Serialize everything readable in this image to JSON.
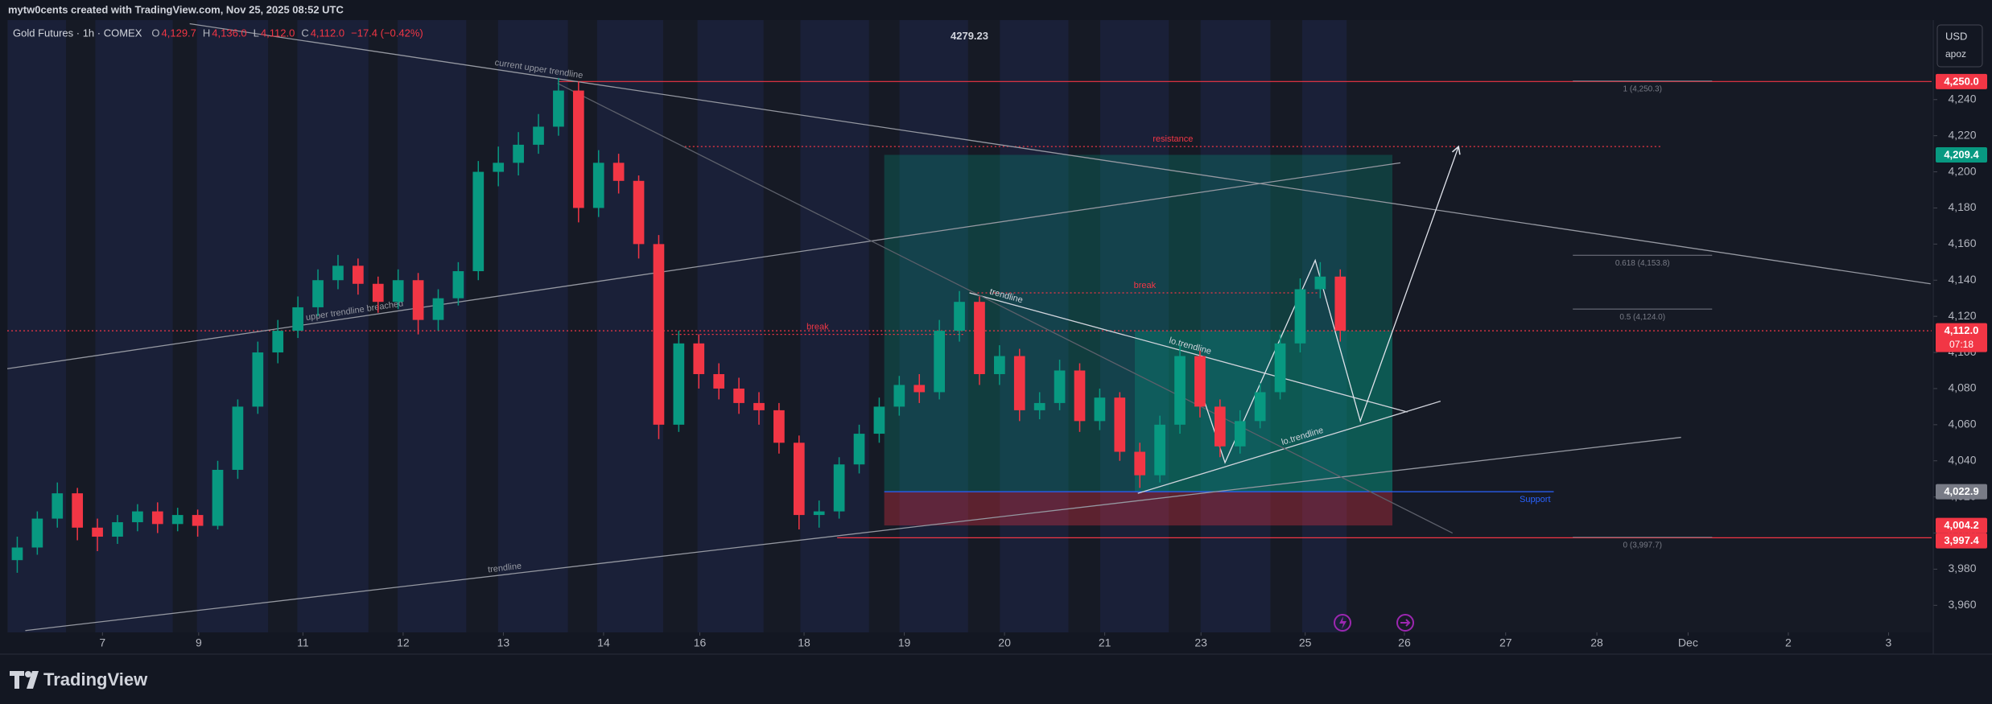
{
  "header": {
    "credit": "mytw0cents created with TradingView.com, Nov 25, 2025 08:52 UTC",
    "currency": "USD",
    "user": "apoz"
  },
  "footer": {
    "brand": "TradingView"
  },
  "chart_data": {
    "type": "candlestick",
    "title": "Gold Futures · 1h · COMEX",
    "ohlc_legend": [
      {
        "key": "O",
        "value": "4,129.7"
      },
      {
        "key": "H",
        "value": "4,136.0"
      },
      {
        "key": "L",
        "value": "4,112.0"
      },
      {
        "key": "C",
        "value": "4,112.0"
      }
    ],
    "change": "−17.4 (−0.42%)",
    "up_color": "#089981",
    "down_color": "#f23645",
    "grid": false,
    "xlim": [
      0,
      19.2
    ],
    "xticks": [
      {
        "value": 0.95,
        "label": "7"
      },
      {
        "value": 1.91,
        "label": "9"
      },
      {
        "value": 2.95,
        "label": "11"
      },
      {
        "value": 3.95,
        "label": "12"
      },
      {
        "value": 4.95,
        "label": "13"
      },
      {
        "value": 5.95,
        "label": "14"
      },
      {
        "value": 6.91,
        "label": "16"
      },
      {
        "value": 7.95,
        "label": "18"
      },
      {
        "value": 8.95,
        "label": "19"
      },
      {
        "value": 9.95,
        "label": "20"
      },
      {
        "value": 10.95,
        "label": "21"
      },
      {
        "value": 11.91,
        "label": "23"
      },
      {
        "value": 12.95,
        "label": "25"
      },
      {
        "value": 13.94,
        "label": "26"
      },
      {
        "value": 14.95,
        "label": "27"
      },
      {
        "value": 15.86,
        "label": "28"
      },
      {
        "value": 16.77,
        "label": "Dec"
      },
      {
        "value": 17.77,
        "label": "2"
      },
      {
        "value": 18.77,
        "label": "3"
      }
    ],
    "ylim": [
      3945,
      4284
    ],
    "yticks": [
      {
        "value": 3960,
        "label": "3,960"
      },
      {
        "value": 3980,
        "label": "3,980"
      },
      {
        "value": 4000,
        "label": "4,000"
      },
      {
        "value": 4020,
        "label": "4,020"
      },
      {
        "value": 4040,
        "label": "4,040"
      },
      {
        "value": 4060,
        "label": "4,060"
      },
      {
        "value": 4080,
        "label": "4,080"
      },
      {
        "value": 4100,
        "label": "4,100"
      },
      {
        "value": 4120,
        "label": "4,120"
      },
      {
        "value": 4140,
        "label": "4,140"
      },
      {
        "value": 4160,
        "label": "4,160"
      },
      {
        "value": 4180,
        "label": "4,180"
      },
      {
        "value": 4200,
        "label": "4,200"
      },
      {
        "value": 4220,
        "label": "4,220"
      },
      {
        "value": 4240,
        "label": "4,240"
      }
    ],
    "x": [
      0.1,
      0.3,
      0.5,
      0.7,
      0.9,
      1.1,
      1.3,
      1.5,
      1.7,
      1.9,
      2.1,
      2.3,
      2.5,
      2.7,
      2.9,
      3.1,
      3.3,
      3.5,
      3.7,
      3.9,
      4.1,
      4.3,
      4.5,
      4.7,
      4.9,
      5.1,
      5.3,
      5.5,
      5.7,
      5.9,
      6.1,
      6.3,
      6.5,
      6.7,
      6.9,
      7.1,
      7.3,
      7.5,
      7.7,
      7.9,
      8.1,
      8.3,
      8.5,
      8.7,
      8.9,
      9.1,
      9.3,
      9.5,
      9.7,
      9.9,
      10.1,
      10.3,
      10.5,
      10.7,
      10.9,
      11.1,
      11.3,
      11.5,
      11.7,
      11.9,
      12.1,
      12.3,
      12.5,
      12.7,
      12.9,
      13.1,
      13.3
    ],
    "open": [
      3985,
      3992,
      4008,
      4022,
      4003,
      3998,
      4006,
      4012,
      4005,
      4010,
      4004,
      4035,
      4070,
      4100,
      4112,
      4125,
      4140,
      4148,
      4138,
      4128,
      4140,
      4118,
      4130,
      4145,
      4200,
      4205,
      4215,
      4225,
      4245,
      4180,
      4205,
      4195,
      4160,
      4060,
      4105,
      4088,
      4080,
      4072,
      4068,
      4050,
      4010,
      4012,
      4038,
      4055,
      4070,
      4082,
      4078,
      4112,
      4128,
      4088,
      4098,
      4068,
      4072,
      4090,
      4062,
      4075,
      4045,
      4032,
      4060,
      4098,
      4070,
      4048,
      4062,
      4078,
      4105,
      4135,
      4142
    ],
    "high": [
      3998,
      4012,
      4028,
      4025,
      4008,
      4010,
      4016,
      4017,
      4014,
      4013,
      4040,
      4074,
      4106,
      4118,
      4131,
      4146,
      4154,
      4152,
      4142,
      4146,
      4144,
      4135,
      4150,
      4206,
      4214,
      4222,
      4232,
      4252,
      4250,
      4212,
      4210,
      4198,
      4165,
      4112,
      4110,
      4094,
      4086,
      4078,
      4072,
      4054,
      4018,
      4042,
      4060,
      4075,
      4087,
      4088,
      4118,
      4134,
      4131,
      4104,
      4102,
      4078,
      4096,
      4094,
      4080,
      4078,
      4050,
      4065,
      4104,
      4101,
      4074,
      4068,
      4083,
      4110,
      4141,
      4150,
      4146
    ],
    "low": [
      3978,
      3988,
      4003,
      3996,
      3990,
      3994,
      4001,
      4000,
      4001,
      3998,
      4002,
      4030,
      4066,
      4094,
      4108,
      4120,
      4135,
      4132,
      4122,
      4124,
      4110,
      4112,
      4126,
      4140,
      4192,
      4198,
      4210,
      4220,
      4172,
      4175,
      4188,
      4152,
      4052,
      4056,
      4080,
      4074,
      4066,
      4060,
      4044,
      4002,
      4003,
      4008,
      4033,
      4050,
      4065,
      4072,
      4074,
      4106,
      4082,
      4082,
      4062,
      4063,
      4068,
      4056,
      4057,
      4040,
      4025,
      4028,
      4055,
      4064,
      4042,
      4044,
      4058,
      4074,
      4100,
      4130,
      4106
    ],
    "close": [
      3992,
      4008,
      4022,
      4003,
      3998,
      4006,
      4012,
      4005,
      4010,
      4004,
      4035,
      4070,
      4100,
      4112,
      4125,
      4140,
      4148,
      4138,
      4128,
      4140,
      4118,
      4130,
      4145,
      4200,
      4205,
      4215,
      4225,
      4245,
      4180,
      4205,
      4195,
      4160,
      4060,
      4105,
      4088,
      4080,
      4072,
      4068,
      4050,
      4010,
      4012,
      4038,
      4055,
      4070,
      4082,
      4078,
      4112,
      4128,
      4088,
      4098,
      4068,
      4072,
      4090,
      4062,
      4075,
      4045,
      4032,
      4060,
      4098,
      4070,
      4048,
      4062,
      4078,
      4105,
      4135,
      4142,
      4112
    ],
    "drawings": [
      {
        "x": [
          1.82,
          19.19
        ],
        "y": [
          4282,
          4138
        ],
        "color": "#9598a1",
        "labels": [
          "current upper trendline"
        ]
      },
      {
        "x": [
          0,
          13.9
        ],
        "y": [
          4091,
          4205
        ],
        "color": "#9598a1",
        "labels": [
          "upper trendline breached"
        ]
      },
      {
        "x": [
          0.18,
          16.7
        ],
        "y": [
          3946,
          4053
        ],
        "color": "#9598a1",
        "labels": [
          "trendline"
        ]
      },
      {
        "x": [
          9.6,
          13.97
        ],
        "y": [
          4133,
          4067
        ],
        "color": "#d1d4dc",
        "labels": [
          "trendline",
          "lo.trendline"
        ]
      },
      {
        "x": [
          11.28,
          14.3
        ],
        "y": [
          4022,
          4073
        ],
        "color": "#d1d4dc",
        "labels": [
          "lo.trendline"
        ]
      },
      {
        "x": [
          5.49,
          14.42
        ],
        "y": [
          4249,
          4000
        ],
        "color": "#5d606b"
      },
      {
        "x": [
          11.95,
          12.15,
          13.05,
          13.5,
          14.48
        ],
        "y": [
          4072,
          4039,
          4151,
          4062,
          4214
        ],
        "color": "#e0e3eb"
      }
    ],
    "levels": [
      {
        "value": 4250,
        "x": [
          5.5,
          19.2
        ],
        "color": "#f23645",
        "style": "solid"
      },
      {
        "value": 4214,
        "x": [
          6.76,
          16.5
        ],
        "color": "#f23645",
        "style": "dotted",
        "label": "resistance"
      },
      {
        "value": 4133,
        "x": [
          9.6,
          13.1
        ],
        "color": "#f23645",
        "style": "dotted",
        "label": "break"
      },
      {
        "value": 4110,
        "x": [
          6.63,
          9.54
        ],
        "color": "#f23645",
        "style": "dotted",
        "label": "break"
      },
      {
        "value": 4112,
        "x": [
          0,
          19.2
        ],
        "color": "#f23645",
        "style": "dotted"
      },
      {
        "value": 4022.9,
        "x": [
          8.75,
          15.43
        ],
        "color": "#2962ff",
        "style": "solid",
        "label": "Support"
      },
      {
        "value": 3997.4,
        "x": [
          8.28,
          19.2
        ],
        "color": "#f23645",
        "style": "solid"
      }
    ],
    "position": {
      "x": [
        8.75,
        13.82
      ],
      "target": 4209.4,
      "entry": 4022.9,
      "stop": 4004.2,
      "current": 4112,
      "open_x": [
        11.25,
        13.82
      ]
    },
    "fib": {
      "x": [
        15.62,
        17.01
      ],
      "color": "#787b86",
      "levels": [
        {
          "value": 4250.3,
          "label": "1 (4,250.3)"
        },
        {
          "value": 4153.8,
          "label": "0.618 (4,153.8)"
        },
        {
          "value": 4124.0,
          "label": "0.5 (4,124.0)"
        },
        {
          "value": 3997.7,
          "label": "0 (3,997.7)"
        }
      ]
    },
    "high_mark": {
      "x": 9.6,
      "value": 4279.23
    },
    "price_labels": [
      {
        "value": 4250,
        "label": "4,250.0",
        "color": "#f23645"
      },
      {
        "value": 4209.4,
        "label": "4,209.4",
        "color": "#089981"
      },
      {
        "value": 4112,
        "label": "4,112.0",
        "color": "#f23645",
        "countdown": "07:18"
      },
      {
        "value": 4022.9,
        "label": "4,022.9",
        "color": "#787b86"
      },
      {
        "value": 4004.2,
        "label": "4,004.2",
        "color": "#f23645"
      },
      {
        "value": 3997.4,
        "label": "3,997.4",
        "color": "#f23645"
      }
    ]
  }
}
